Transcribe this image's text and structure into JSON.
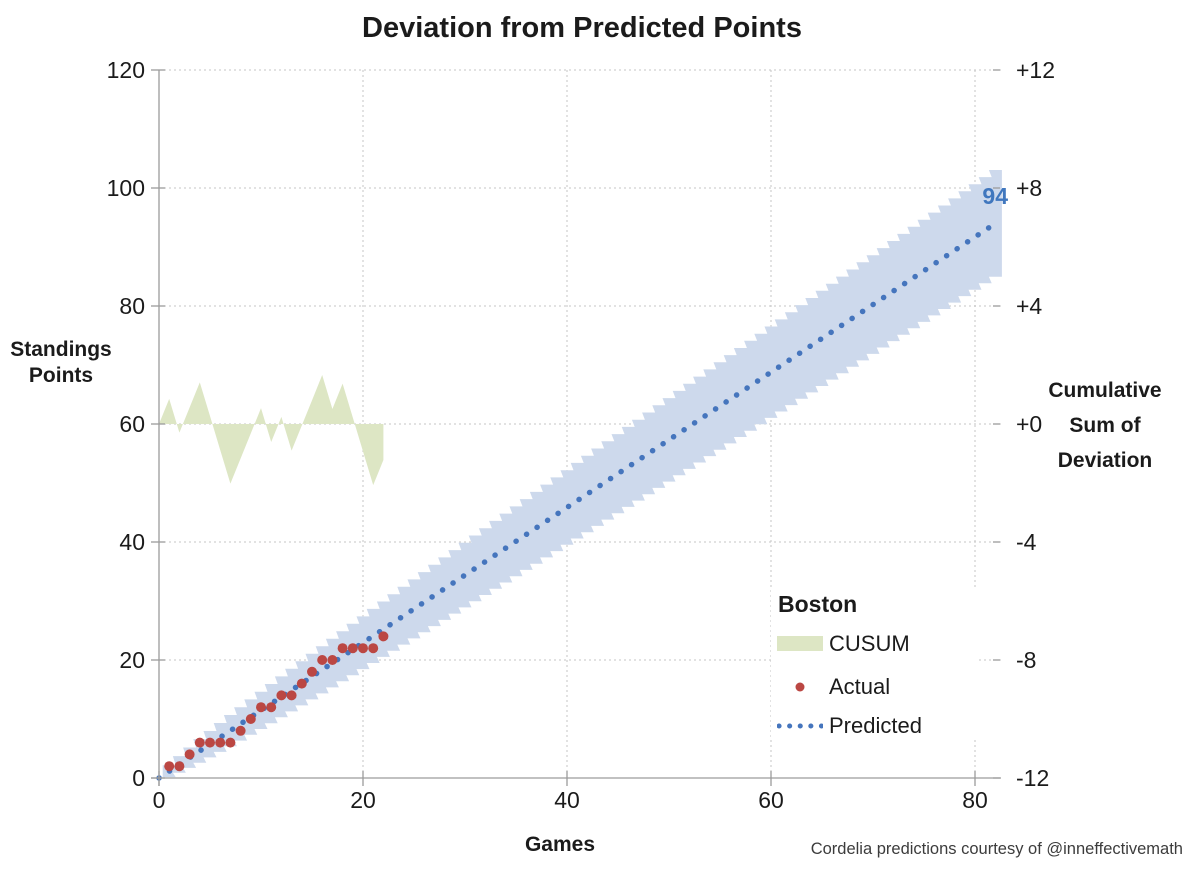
{
  "footer": "Cordelia predictions courtesy of @inneffectivemath",
  "chart_data": {
    "type": "line",
    "title": "Deviation from Predicted Points",
    "xlabel": "Games",
    "ylabel_left": "Standings Points",
    "ylabel_right": "Cumulative Sum of Deviation",
    "xlim": [
      0,
      82.5
    ],
    "ylim_left": [
      0,
      120
    ],
    "ylim_right": [
      -12,
      12
    ],
    "grid": true,
    "x_ticks": [
      0,
      20,
      40,
      60,
      80
    ],
    "y_left_ticks": [
      0,
      20,
      40,
      60,
      80,
      100,
      120
    ],
    "y_right_ticks": [
      12,
      8,
      4,
      0,
      -4,
      -8,
      -12
    ],
    "axes_text": {
      "x": {
        "label": "Games",
        "ticks": [
          "0",
          "20",
          "40",
          "60",
          "80"
        ]
      },
      "y_left": {
        "label_lines": [
          "Standings",
          "Points"
        ],
        "ticks": [
          "120",
          "100",
          "80",
          "60",
          "40",
          "20",
          "0"
        ]
      },
      "y_right": {
        "label_lines": [
          "Cumulative",
          "Sum of",
          "Deviation"
        ],
        "ticks": [
          "+12",
          "+8",
          "+4",
          "+0",
          "-4",
          "-8",
          "-12"
        ]
      }
    },
    "legend": {
      "title": "Boston",
      "position": "inside-right",
      "entries": [
        {
          "label": "CUSUM",
          "type": "area"
        },
        {
          "label": "Actual",
          "type": "scatter"
        },
        {
          "label": "Predicted",
          "type": "dotted-line"
        }
      ]
    },
    "annotations": [
      {
        "text": "94",
        "x": 81.5,
        "y": 99,
        "color": "#4077be"
      }
    ],
    "series": [
      {
        "name": "CUSUM",
        "type": "area",
        "axis": "right",
        "color": "#dde6c4",
        "x": [
          0,
          1,
          2,
          3,
          4,
          5,
          6,
          7,
          8,
          9,
          10,
          11,
          12,
          13,
          14,
          15,
          16,
          17,
          18,
          19,
          20,
          21,
          22
        ],
        "y": [
          0,
          0.85,
          -0.29,
          0.56,
          1.41,
          0.27,
          -0.88,
          -2.02,
          -1.17,
          -0.32,
          0.54,
          -0.61,
          0.24,
          -0.9,
          -0.05,
          0.8,
          1.66,
          0.51,
          1.37,
          0.22,
          -0.93,
          -2.07,
          -1.22
        ]
      },
      {
        "name": "Actual",
        "type": "scatter",
        "axis": "left",
        "color": "#bb4743",
        "x": [
          1,
          2,
          3,
          4,
          5,
          6,
          7,
          8,
          9,
          10,
          11,
          12,
          13,
          14,
          15,
          16,
          17,
          18,
          19,
          20,
          21,
          22
        ],
        "y": [
          2,
          2,
          4,
          6,
          6,
          6,
          6,
          8,
          10,
          12,
          12,
          14,
          14,
          16,
          18,
          20,
          20,
          22,
          22,
          22,
          22,
          24
        ]
      },
      {
        "name": "Predicted",
        "type": "dotted-line",
        "axis": "left",
        "color": "#4575bd",
        "x": [
          0,
          82
        ],
        "y": [
          0,
          94
        ],
        "final_value_label": "94"
      },
      {
        "name": "Prediction band",
        "type": "stepped-band",
        "axis": "left",
        "color": "#cdd9ec",
        "games": [
          1,
          82
        ],
        "center_slope": 1.1463,
        "half_width": "sqrt(n) points"
      }
    ]
  }
}
